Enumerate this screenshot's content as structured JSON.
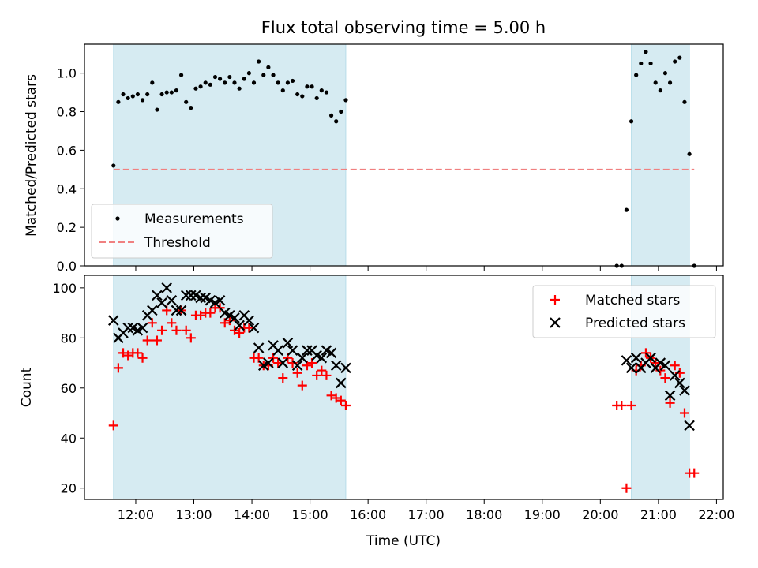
{
  "chart_data": [
    {
      "type": "scatter",
      "title": "Flux total observing time = 5.00 h",
      "ylabel": "Matched/Predicted stars",
      "xlim": [
        "11:07",
        "22:07"
      ],
      "ylim": [
        0,
        1.15
      ],
      "yticks": [
        0.0,
        0.2,
        0.4,
        0.6,
        0.8,
        1.0
      ],
      "ytick_labels": [
        "0.0",
        "0.2",
        "0.4",
        "0.6",
        "0.8",
        "1.0"
      ],
      "shaded_intervals": [
        [
          "11:37",
          "15:37"
        ],
        [
          "20:32",
          "21:32"
        ]
      ],
      "legend": {
        "placement": "lower-left",
        "entries": [
          "Measurements",
          "Threshold"
        ]
      },
      "series": [
        {
          "name": "Measurements",
          "marker": "dot",
          "color": "#000000",
          "x": [
            "11:37",
            "11:42",
            "11:47",
            "11:52",
            "11:57",
            "12:02",
            "12:07",
            "12:12",
            "12:17",
            "12:22",
            "12:27",
            "12:32",
            "12:37",
            "12:42",
            "12:47",
            "12:52",
            "12:57",
            "13:02",
            "13:07",
            "13:12",
            "13:17",
            "13:22",
            "13:27",
            "13:32",
            "13:37",
            "13:42",
            "13:47",
            "13:52",
            "13:57",
            "14:02",
            "14:07",
            "14:12",
            "14:17",
            "14:22",
            "14:27",
            "14:32",
            "14:37",
            "14:42",
            "14:47",
            "14:52",
            "14:57",
            "15:02",
            "15:07",
            "15:12",
            "15:17",
            "15:22",
            "15:27",
            "15:32",
            "15:37",
            "20:17",
            "20:22",
            "20:27",
            "20:32",
            "20:37",
            "20:42",
            "20:47",
            "20:52",
            "20:57",
            "21:02",
            "21:07",
            "21:12",
            "21:17",
            "21:22",
            "21:27",
            "21:32",
            "21:37"
          ],
          "y": [
            0.52,
            0.85,
            0.89,
            0.87,
            0.88,
            0.89,
            0.86,
            0.89,
            0.95,
            0.81,
            0.89,
            0.9,
            0.9,
            0.91,
            0.99,
            0.85,
            0.82,
            0.92,
            0.93,
            0.95,
            0.94,
            0.98,
            0.97,
            0.95,
            0.98,
            0.95,
            0.92,
            0.97,
            1.0,
            0.95,
            1.06,
            0.99,
            1.03,
            0.99,
            0.95,
            0.91,
            0.95,
            0.96,
            0.89,
            0.88,
            0.93,
            0.93,
            0.87,
            0.91,
            0.9,
            0.78,
            0.75,
            0.8,
            0.86,
            0.0,
            0.0,
            0.29,
            0.75,
            0.99,
            1.05,
            1.11,
            1.05,
            0.95,
            0.91,
            1.0,
            0.95,
            1.06,
            1.08,
            0.85,
            0.58,
            0.0
          ]
        },
        {
          "name": "Threshold",
          "style": "dashed",
          "color": "#f08080",
          "x": [
            "11:37",
            "21:37"
          ],
          "y": [
            0.5,
            0.5
          ]
        }
      ]
    },
    {
      "type": "scatter",
      "xlabel": "Time (UTC)",
      "ylabel": "Count",
      "xlim": [
        "11:07",
        "22:07"
      ],
      "ylim": [
        15.5,
        105
      ],
      "xticks": [
        "12:00",
        "13:00",
        "14:00",
        "15:00",
        "16:00",
        "17:00",
        "18:00",
        "19:00",
        "20:00",
        "21:00",
        "22:00"
      ],
      "yticks": [
        20,
        40,
        60,
        80,
        100
      ],
      "shaded_intervals": [
        [
          "11:37",
          "15:37"
        ],
        [
          "20:32",
          "21:32"
        ]
      ],
      "legend": {
        "placement": "upper-right",
        "entries": [
          "Matched stars",
          "Predicted stars"
        ]
      },
      "series": [
        {
          "name": "Matched stars",
          "marker": "plus",
          "color": "#ff0000",
          "x": [
            "11:37",
            "11:42",
            "11:47",
            "11:52",
            "11:57",
            "12:02",
            "12:07",
            "12:12",
            "12:17",
            "12:22",
            "12:27",
            "12:32",
            "12:37",
            "12:42",
            "12:47",
            "12:52",
            "12:57",
            "13:02",
            "13:07",
            "13:12",
            "13:17",
            "13:22",
            "13:27",
            "13:32",
            "13:37",
            "13:42",
            "13:47",
            "13:52",
            "13:57",
            "14:02",
            "14:07",
            "14:12",
            "14:17",
            "14:22",
            "14:27",
            "14:32",
            "14:37",
            "14:42",
            "14:47",
            "14:52",
            "14:57",
            "15:02",
            "15:07",
            "15:12",
            "15:17",
            "15:22",
            "15:27",
            "15:32",
            "15:37",
            "20:17",
            "20:22",
            "20:27",
            "20:32",
            "20:37",
            "20:42",
            "20:47",
            "20:52",
            "20:57",
            "21:02",
            "21:07",
            "21:12",
            "21:17",
            "21:22",
            "21:27",
            "21:32",
            "21:37"
          ],
          "y": [
            45,
            68,
            74,
            73,
            74,
            74,
            72,
            79,
            86,
            79,
            83,
            91,
            86,
            83,
            91,
            83,
            80,
            89,
            89,
            90,
            90,
            92,
            92,
            86,
            87,
            83,
            82,
            84,
            84,
            72,
            72,
            69,
            69,
            72,
            70,
            64,
            72,
            70,
            66,
            61,
            69,
            70,
            65,
            67,
            65,
            57,
            56,
            55,
            53,
            53,
            53,
            20,
            53,
            67,
            69,
            74,
            72,
            70,
            67,
            64,
            54,
            69,
            66,
            50,
            26,
            26
          ]
        },
        {
          "name": "Predicted stars",
          "marker": "cross",
          "color": "#000000",
          "x": [
            "11:37",
            "11:42",
            "11:47",
            "11:52",
            "11:57",
            "12:02",
            "12:07",
            "12:12",
            "12:17",
            "12:22",
            "12:27",
            "12:32",
            "12:37",
            "12:42",
            "12:47",
            "12:52",
            "12:57",
            "13:02",
            "13:07",
            "13:12",
            "13:17",
            "13:22",
            "13:27",
            "13:32",
            "13:37",
            "13:42",
            "13:47",
            "13:52",
            "13:57",
            "14:02",
            "14:07",
            "14:12",
            "14:17",
            "14:22",
            "14:27",
            "14:32",
            "14:37",
            "14:42",
            "14:47",
            "14:52",
            "14:57",
            "15:02",
            "15:07",
            "15:12",
            "15:17",
            "15:22",
            "15:27",
            "15:32",
            "15:37",
            "20:27",
            "20:32",
            "20:37",
            "20:42",
            "20:47",
            "20:52",
            "20:57",
            "21:02",
            "21:07",
            "21:12",
            "21:17",
            "21:22",
            "21:27",
            "21:32"
          ],
          "y": [
            87,
            80,
            82,
            84,
            84,
            83,
            84,
            89,
            91,
            97,
            94,
            100,
            95,
            91,
            91,
            97,
            97,
            97,
            96,
            96,
            95,
            94,
            95,
            90,
            89,
            88,
            85,
            89,
            87,
            84,
            76,
            69,
            70,
            77,
            75,
            70,
            78,
            75,
            69,
            72,
            75,
            75,
            73,
            72,
            75,
            74,
            69,
            62,
            68,
            71,
            68,
            72,
            68,
            70,
            72,
            68,
            70,
            69,
            57,
            65,
            62,
            59,
            45
          ]
        }
      ]
    }
  ]
}
